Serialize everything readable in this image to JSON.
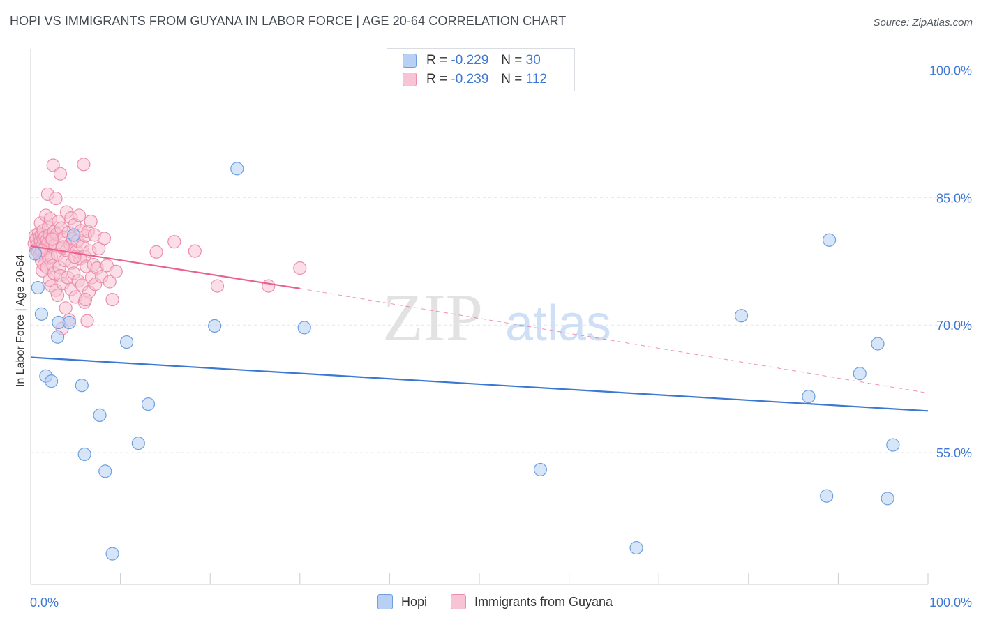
{
  "header": {
    "title": "HOPI VS IMMIGRANTS FROM GUYANA IN LABOR FORCE | AGE 20-64 CORRELATION CHART",
    "source": "Source: ZipAtlas.com"
  },
  "watermark": {
    "zip": "ZIP",
    "atlas": "atlas"
  },
  "legend": {
    "r_label": "R =",
    "n_label": "N =",
    "rows": [
      {
        "name": "Hopi",
        "r": "-0.229",
        "n": "30",
        "fill": "#b7d0f4",
        "stroke": "#6d9fe0"
      },
      {
        "name": "Immigrants from Guyana",
        "r": "-0.239",
        "n": "112",
        "fill": "#f8c3d4",
        "stroke": "#ec8fac"
      }
    ]
  },
  "chart_data": {
    "type": "scatter",
    "title": "HOPI VS IMMIGRANTS FROM GUYANA IN LABOR FORCE | AGE 20-64 CORRELATION CHART",
    "xlabel": "",
    "ylabel": "In Labor Force | Age 20-64",
    "xlim": [
      0,
      100
    ],
    "ylim": [
      39.5,
      102.5
    ],
    "x_tick_labels": [
      "0.0%",
      "100.0%"
    ],
    "y_ticks": [
      100,
      85,
      70,
      55
    ],
    "y_tick_labels": [
      "100.0%",
      "85.0%",
      "70.0%",
      "55.0%"
    ],
    "grid": true,
    "series": [
      {
        "name": "Hopi",
        "color": "#3a78d1",
        "fill": "#b7d0f4",
        "stroke": "#6d9fe0",
        "trend": {
          "x": [
            0,
            100
          ],
          "y": [
            66.2,
            59.9
          ],
          "style": "solid"
        },
        "points": [
          [
            0.5,
            78.4
          ],
          [
            0.8,
            74.4
          ],
          [
            1.2,
            71.3
          ],
          [
            1.7,
            64.0
          ],
          [
            2.3,
            63.4
          ],
          [
            3.0,
            68.6
          ],
          [
            3.1,
            70.3
          ],
          [
            4.3,
            70.3
          ],
          [
            4.8,
            80.6
          ],
          [
            5.7,
            62.9
          ],
          [
            6.0,
            54.8
          ],
          [
            7.7,
            59.4
          ],
          [
            8.3,
            52.8
          ],
          [
            9.1,
            43.1
          ],
          [
            10.7,
            68.0
          ],
          [
            12.0,
            56.1
          ],
          [
            13.1,
            60.7
          ],
          [
            20.5,
            69.9
          ],
          [
            23.0,
            88.4
          ],
          [
            30.5,
            69.7
          ],
          [
            56.8,
            53.0
          ],
          [
            67.5,
            43.8
          ],
          [
            79.2,
            71.1
          ],
          [
            86.7,
            61.6
          ],
          [
            88.7,
            49.9
          ],
          [
            89.0,
            80.0
          ],
          [
            92.4,
            64.3
          ],
          [
            94.4,
            67.8
          ],
          [
            95.5,
            49.6
          ],
          [
            96.1,
            55.9
          ]
        ]
      },
      {
        "name": "Immigrants from Guyana",
        "color": "#e8628d",
        "fill": "#f8c3d4",
        "stroke": "#ec8fac",
        "trend": {
          "x": [
            0,
            30
          ],
          "y": [
            79.3,
            74.3
          ],
          "style": "solid",
          "extension": {
            "x": [
              30,
              100
            ],
            "y": [
              74.3,
              62.0
            ],
            "style": "dashed"
          }
        },
        "points": [
          [
            0.4,
            79.6
          ],
          [
            0.5,
            80.5
          ],
          [
            0.6,
            78.9
          ],
          [
            0.6,
            80.1
          ],
          [
            0.7,
            79.4
          ],
          [
            0.8,
            78.6
          ],
          [
            0.9,
            80.8
          ],
          [
            0.9,
            79.0
          ],
          [
            1.0,
            80.3
          ],
          [
            1.0,
            78.2
          ],
          [
            1.1,
            82.0
          ],
          [
            1.1,
            79.9
          ],
          [
            1.2,
            80.6
          ],
          [
            1.2,
            77.6
          ],
          [
            1.3,
            79.3
          ],
          [
            1.3,
            76.4
          ],
          [
            1.4,
            81.1
          ],
          [
            1.4,
            80.2
          ],
          [
            1.5,
            78.8
          ],
          [
            1.5,
            77.1
          ],
          [
            1.6,
            80.4
          ],
          [
            1.6,
            79.1
          ],
          [
            1.7,
            82.9
          ],
          [
            1.7,
            78.5
          ],
          [
            1.8,
            80.0
          ],
          [
            1.8,
            76.8
          ],
          [
            1.9,
            85.4
          ],
          [
            1.9,
            79.6
          ],
          [
            2.0,
            81.5
          ],
          [
            2.0,
            77.9
          ],
          [
            2.1,
            80.6
          ],
          [
            2.1,
            75.3
          ],
          [
            2.2,
            79.2
          ],
          [
            2.2,
            82.5
          ],
          [
            2.3,
            78.0
          ],
          [
            2.3,
            74.6
          ],
          [
            2.4,
            80.2
          ],
          [
            2.5,
            88.8
          ],
          [
            2.5,
            77.0
          ],
          [
            2.6,
            81.0
          ],
          [
            2.6,
            76.1
          ],
          [
            2.7,
            79.4
          ],
          [
            2.8,
            84.9
          ],
          [
            2.8,
            74.1
          ],
          [
            2.9,
            80.7
          ],
          [
            3.0,
            78.3
          ],
          [
            3.0,
            73.5
          ],
          [
            3.1,
            82.2
          ],
          [
            3.2,
            76.8
          ],
          [
            3.3,
            87.8
          ],
          [
            3.3,
            75.8
          ],
          [
            3.4,
            81.4
          ],
          [
            3.5,
            79.1
          ],
          [
            3.5,
            69.6
          ],
          [
            3.6,
            74.9
          ],
          [
            3.7,
            80.3
          ],
          [
            3.8,
            77.6
          ],
          [
            3.9,
            72.0
          ],
          [
            4.0,
            83.3
          ],
          [
            4.0,
            78.8
          ],
          [
            4.1,
            75.6
          ],
          [
            4.2,
            80.9
          ],
          [
            4.3,
            70.6
          ],
          [
            4.4,
            79.5
          ],
          [
            4.5,
            82.6
          ],
          [
            4.5,
            74.2
          ],
          [
            4.6,
            77.3
          ],
          [
            4.7,
            80.2
          ],
          [
            4.8,
            76.1
          ],
          [
            4.9,
            81.8
          ],
          [
            5.0,
            73.3
          ],
          [
            5.1,
            78.7
          ],
          [
            5.2,
            79.9
          ],
          [
            5.3,
            75.2
          ],
          [
            5.4,
            82.9
          ],
          [
            5.5,
            77.8
          ],
          [
            5.6,
            81.1
          ],
          [
            5.7,
            74.7
          ],
          [
            5.8,
            79.3
          ],
          [
            5.9,
            88.9
          ],
          [
            6.0,
            72.7
          ],
          [
            6.0,
            78.1
          ],
          [
            6.1,
            80.5
          ],
          [
            6.2,
            76.9
          ],
          [
            6.3,
            70.5
          ],
          [
            6.4,
            81.0
          ],
          [
            6.5,
            73.9
          ],
          [
            6.6,
            78.7
          ],
          [
            6.7,
            82.2
          ],
          [
            6.8,
            75.6
          ],
          [
            7.0,
            77.1
          ],
          [
            7.1,
            80.6
          ],
          [
            7.2,
            74.8
          ],
          [
            7.4,
            76.7
          ],
          [
            7.6,
            79.0
          ],
          [
            7.9,
            75.7
          ],
          [
            8.2,
            80.2
          ],
          [
            8.5,
            77.0
          ],
          [
            8.8,
            75.1
          ],
          [
            9.1,
            73.0
          ],
          [
            9.5,
            76.3
          ],
          [
            14.0,
            78.6
          ],
          [
            16.0,
            79.8
          ],
          [
            18.3,
            78.7
          ],
          [
            20.8,
            74.6
          ],
          [
            26.5,
            74.6
          ],
          [
            30.0,
            76.7
          ],
          [
            1.2,
            78.8
          ],
          [
            2.4,
            80.1
          ],
          [
            3.6,
            79.2
          ],
          [
            4.9,
            78.0
          ],
          [
            6.1,
            73.0
          ]
        ]
      }
    ]
  }
}
